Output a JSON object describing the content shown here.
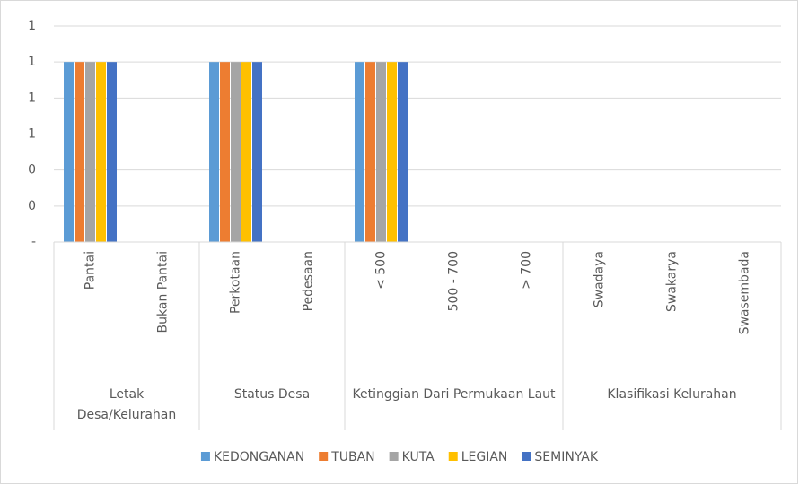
{
  "chart_data": {
    "type": "bar",
    "groups": [
      {
        "name": "Letak Desa/Kelurahan",
        "categories": [
          "Pantai",
          "Bukan Pantai"
        ]
      },
      {
        "name": "Status Desa",
        "categories": [
          "Perkotaan",
          "Pedesaan"
        ]
      },
      {
        "name": "Ketinggian Dari Permukaan Laut",
        "categories": [
          "< 500",
          "500 - 700",
          "> 700"
        ]
      },
      {
        "name": "Klasifikasi Kelurahan",
        "categories": [
          "Swadaya",
          "Swakarya",
          "Swasembada"
        ]
      }
    ],
    "series": [
      {
        "name": "KEDONGANAN",
        "color": "#5b9bd5",
        "values": [
          1,
          0,
          1,
          0,
          1,
          0,
          0,
          0,
          0,
          0
        ]
      },
      {
        "name": "TUBAN",
        "color": "#ed7d31",
        "values": [
          1,
          0,
          1,
          0,
          1,
          0,
          0,
          0,
          0,
          0
        ]
      },
      {
        "name": "KUTA",
        "color": "#a5a5a5",
        "values": [
          1,
          0,
          1,
          0,
          1,
          0,
          0,
          0,
          0,
          0
        ]
      },
      {
        "name": "LEGIAN",
        "color": "#ffc000",
        "values": [
          1,
          0,
          1,
          0,
          1,
          0,
          0,
          0,
          0,
          0
        ]
      },
      {
        "name": "SEMINYAK",
        "color": "#4472c4",
        "values": [
          1,
          0,
          1,
          0,
          1,
          0,
          0,
          0,
          0,
          0
        ]
      }
    ],
    "ylim": [
      0,
      1.2
    ],
    "yticks": [
      {
        "value": 0,
        "label": "-"
      },
      {
        "value": 0.2,
        "label": "0"
      },
      {
        "value": 0.4,
        "label": "0"
      },
      {
        "value": 0.6,
        "label": "1"
      },
      {
        "value": 0.8,
        "label": "1"
      },
      {
        "value": 1,
        "label": "1"
      },
      {
        "value": 1.2,
        "label": "1"
      }
    ],
    "grid": true,
    "legend": "bottom"
  }
}
